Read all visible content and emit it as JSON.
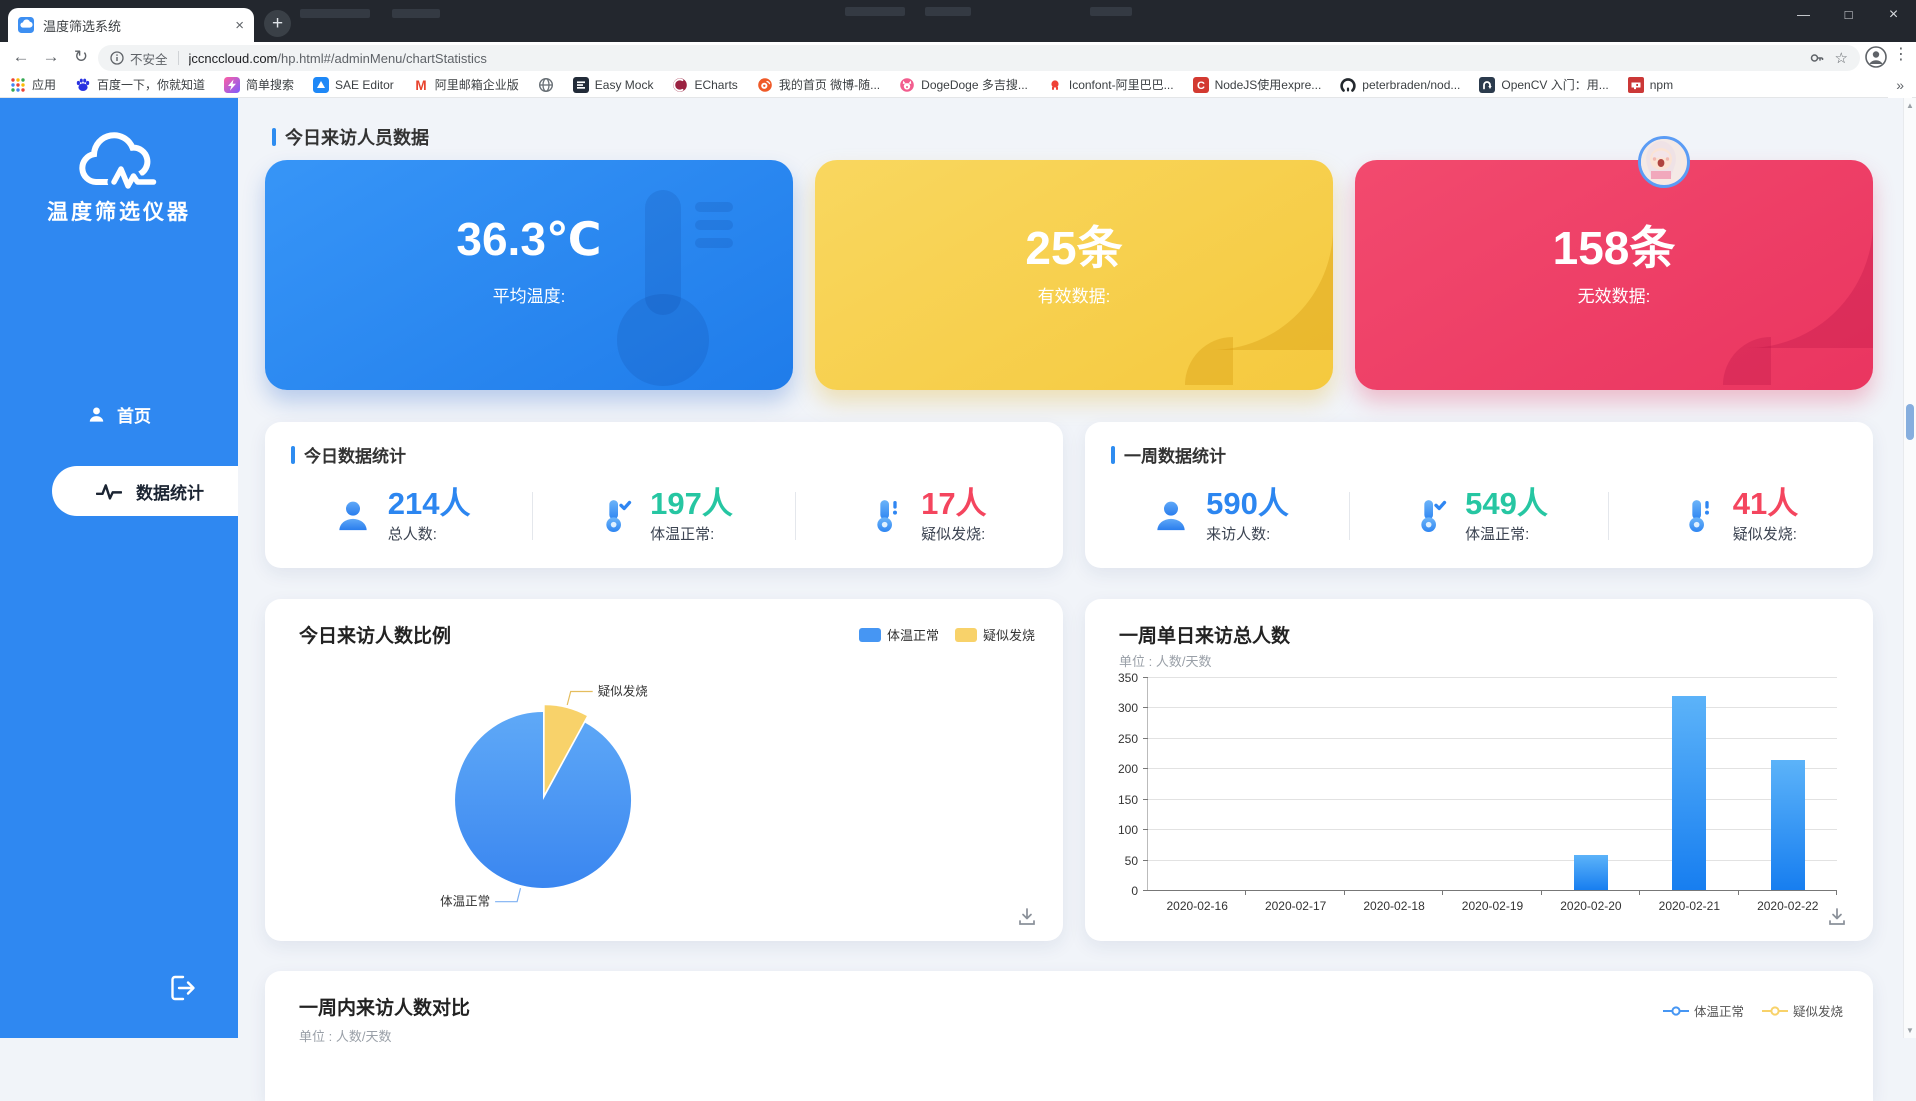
{
  "icons": {
    "back": "←",
    "forward": "→",
    "refresh": "↻",
    "star": "☆",
    "more": "⋮",
    "overflow": "»",
    "minimize": "—",
    "maximize": "□",
    "close": "×",
    "tab_close": "×",
    "new_tab": "+",
    "scroll_up": "▲",
    "scroll_down": "▼"
  },
  "browser": {
    "tab_title": "温度筛选系统",
    "security_label": "不安全",
    "url_host": "jccnccloud.com",
    "url_path": "/hp.html#/adminMenu/chartStatistics",
    "bookmarks": [
      {
        "label": "应用",
        "icon": "apps-grid"
      },
      {
        "label": "百度一下，你就知道",
        "icon": "baidu"
      },
      {
        "label": "简单搜索",
        "icon": "simple-search"
      },
      {
        "label": "SAE Editor",
        "icon": "sae"
      },
      {
        "label": "阿里邮箱企业版",
        "icon": "ali-mail"
      },
      {
        "label": "",
        "icon": "globe"
      },
      {
        "label": "Easy Mock",
        "icon": "easy-mock"
      },
      {
        "label": "ECharts",
        "icon": "echarts"
      },
      {
        "label": "我的首页 微博-随...",
        "icon": "weibo"
      },
      {
        "label": "DogeDoge 多吉搜...",
        "icon": "dogedoge"
      },
      {
        "label": "Iconfont-阿里巴巴...",
        "icon": "iconfont"
      },
      {
        "label": "NodeJS使用expre...",
        "icon": "csdn"
      },
      {
        "label": "peterbraden/nod...",
        "icon": "github"
      },
      {
        "label": "OpenCV 入门：用...",
        "icon": "opencv"
      },
      {
        "label": "npm",
        "icon": "npm"
      }
    ]
  },
  "sidebar": {
    "app_title": "温度筛选仪器",
    "menu": [
      {
        "label": "首页",
        "icon": "user",
        "active": false
      },
      {
        "label": "数据统计",
        "icon": "waveform",
        "active": true
      }
    ]
  },
  "main": {
    "section_title": "今日来访人员数据",
    "summary_cards": [
      {
        "value": "36.3℃",
        "label": "平均温度:",
        "color": "#2b8cf0",
        "decor": "thermometer"
      },
      {
        "value": "25条",
        "label": "有效数据:",
        "color": "#f7d154",
        "decor": "pie-wedges"
      },
      {
        "value": "158条",
        "label": "无效数据:",
        "color": "#f0436a",
        "decor": "pie-wedges",
        "avatar": true
      }
    ],
    "stat_cards": [
      {
        "title": "今日数据统计",
        "stats": [
          {
            "value": "214人",
            "label": "总人数:",
            "color": "#2c86f0",
            "icon": "user-stat"
          },
          {
            "value": "197人",
            "label": "体温正常:",
            "color": "#26c6a2",
            "icon": "thermo-check"
          },
          {
            "value": "17人",
            "label": "疑似发烧:",
            "color": "#f4455e",
            "icon": "thermo-alert"
          }
        ]
      },
      {
        "title": "一周数据统计",
        "stats": [
          {
            "value": "590人",
            "label": "来访人数:",
            "color": "#2c86f0",
            "icon": "user-stat"
          },
          {
            "value": "549人",
            "label": "体温正常:",
            "color": "#26c6a2",
            "icon": "thermo-check"
          },
          {
            "value": "41人",
            "label": "疑似发烧:",
            "color": "#f4455e",
            "icon": "thermo-alert"
          }
        ]
      }
    ]
  },
  "chart_data": [
    {
      "type": "pie",
      "title": "今日来访人数比例",
      "labels": [
        "体温正常",
        "疑似发烧"
      ],
      "values": [
        197,
        17
      ],
      "colors": [
        "#4696f3",
        "#f8d26a"
      ],
      "legend_position": "top-right"
    },
    {
      "type": "bar",
      "title": "一周单日来访总人数",
      "unit_label": "单位 : 人数/天数",
      "categories": [
        "2020-02-16",
        "2020-02-17",
        "2020-02-18",
        "2020-02-19",
        "2020-02-20",
        "2020-02-21",
        "2020-02-22"
      ],
      "values": [
        0,
        0,
        0,
        0,
        57,
        318,
        214
      ],
      "ylim": [
        0,
        350
      ],
      "ytick_step": 50,
      "grid": true,
      "bar_color_top": "#5cb3f9",
      "bar_color_bottom": "#177ef0"
    },
    {
      "type": "line",
      "title": "一周内来访人数对比",
      "unit_label": "单位 : 人数/天数",
      "series": [
        {
          "name": "体温正常",
          "color": "#4696f3"
        },
        {
          "name": "疑似发烧",
          "color": "#f8d26a"
        }
      ]
    }
  ]
}
